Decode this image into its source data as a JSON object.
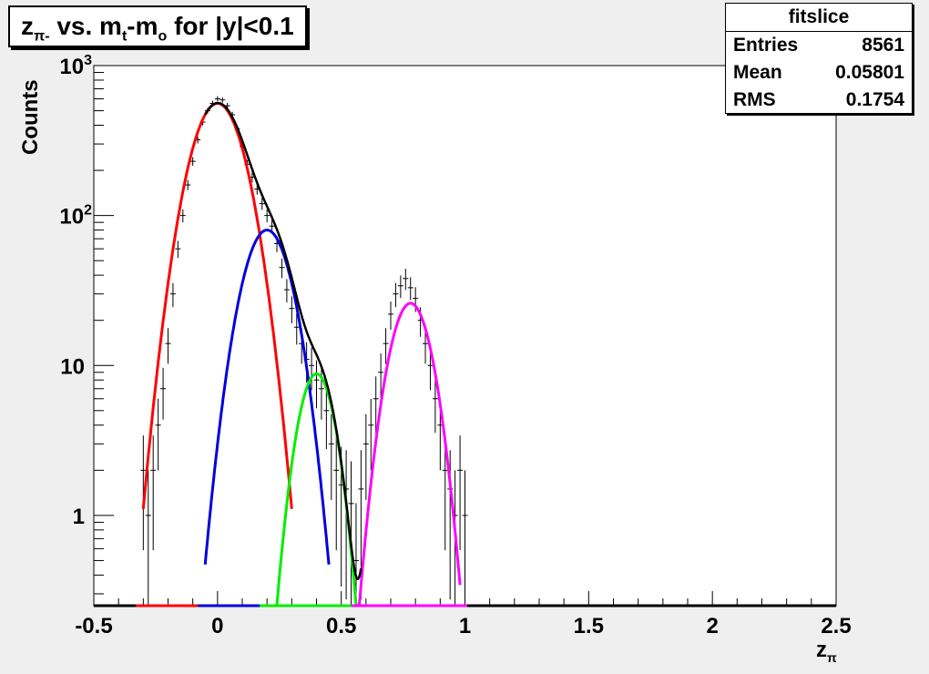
{
  "title": {
    "main": "z",
    "sub": "π-",
    "rest": " vs. m",
    "sub2": "t",
    "rest2": "-m",
    "sub3": "o",
    "rest3": " for |y|<0.1"
  },
  "stats": {
    "header": "fitslice",
    "rows": [
      {
        "label": "Entries",
        "value": "8561"
      },
      {
        "label": "Mean",
        "value": "0.05801"
      },
      {
        "label": "RMS",
        "value": "0.1754"
      }
    ]
  },
  "axes": {
    "ylabel": "Counts",
    "xlabel_main": "z",
    "xlabel_sub": "π"
  },
  "chart_data": {
    "type": "line",
    "ylog": true,
    "xlim": [
      -0.5,
      2.5
    ],
    "ylim": [
      0.25,
      1000
    ],
    "xticks": [
      {
        "v": -0.5,
        "label": "-0.5"
      },
      {
        "v": 0,
        "label": "0"
      },
      {
        "v": 0.5,
        "label": "0.5"
      },
      {
        "v": 1,
        "label": "1"
      },
      {
        "v": 1.5,
        "label": "1.5"
      },
      {
        "v": 2,
        "label": "2"
      },
      {
        "v": 2.5,
        "label": "2.5"
      }
    ],
    "yticks": [
      {
        "v": 1,
        "label": "1"
      },
      {
        "v": 10,
        "label": "10"
      },
      {
        "v": 100,
        "label": "10",
        "exp": "2"
      },
      {
        "v": 1000,
        "label": "10",
        "exp": "3"
      }
    ],
    "series": [
      {
        "color": "#ff0000",
        "amp": 560,
        "mu": 0.0,
        "sigma": 0.085,
        "xmin": -0.3,
        "xmax": 0.3
      },
      {
        "color": "#0000dd",
        "amp": 80,
        "mu": 0.2,
        "sigma": 0.078,
        "xmin": -0.05,
        "xmax": 0.45
      },
      {
        "color": "#00ee00",
        "amp": 8.8,
        "mu": 0.4,
        "sigma": 0.06,
        "xmin": 0.2,
        "xmax": 0.57
      },
      {
        "color": "#ff00ff",
        "amp": 26,
        "mu": 0.78,
        "sigma": 0.068,
        "xmin": 0.57,
        "xmax": 0.98
      }
    ],
    "data_points": [
      [
        -0.3,
        2
      ],
      [
        -0.28,
        1
      ],
      [
        -0.26,
        2
      ],
      [
        -0.24,
        4
      ],
      [
        -0.22,
        7
      ],
      [
        -0.2,
        14
      ],
      [
        -0.18,
        30
      ],
      [
        -0.16,
        60
      ],
      [
        -0.14,
        100
      ],
      [
        -0.12,
        160
      ],
      [
        -0.1,
        230
      ],
      [
        -0.08,
        320
      ],
      [
        -0.06,
        420
      ],
      [
        -0.04,
        500
      ],
      [
        -0.02,
        560
      ],
      [
        0,
        600
      ],
      [
        0.02,
        590
      ],
      [
        0.04,
        540
      ],
      [
        0.06,
        470
      ],
      [
        0.08,
        380
      ],
      [
        0.1,
        290
      ],
      [
        0.12,
        220
      ],
      [
        0.14,
        180
      ],
      [
        0.16,
        150
      ],
      [
        0.18,
        120
      ],
      [
        0.2,
        100
      ],
      [
        0.22,
        85
      ],
      [
        0.24,
        65
      ],
      [
        0.26,
        45
      ],
      [
        0.28,
        32
      ],
      [
        0.3,
        24
      ],
      [
        0.32,
        18
      ],
      [
        0.34,
        14
      ],
      [
        0.36,
        11
      ],
      [
        0.38,
        10
      ],
      [
        0.4,
        8
      ],
      [
        0.42,
        7
      ],
      [
        0.44,
        5
      ],
      [
        0.46,
        3
      ],
      [
        0.48,
        2
      ],
      [
        0.5,
        1.6
      ],
      [
        0.52,
        1.5
      ],
      [
        0.54,
        1.2
      ],
      [
        0.56,
        0.5
      ],
      [
        0.58,
        1.5
      ],
      [
        0.6,
        3
      ],
      [
        0.62,
        4
      ],
      [
        0.64,
        6
      ],
      [
        0.66,
        9
      ],
      [
        0.68,
        14
      ],
      [
        0.7,
        22
      ],
      [
        0.72,
        30
      ],
      [
        0.74,
        34
      ],
      [
        0.76,
        38
      ],
      [
        0.78,
        33
      ],
      [
        0.8,
        28
      ],
      [
        0.82,
        20
      ],
      [
        0.84,
        14
      ],
      [
        0.86,
        10
      ],
      [
        0.88,
        6
      ],
      [
        0.9,
        4
      ],
      [
        0.92,
        2
      ],
      [
        0.94,
        1.5
      ],
      [
        0.96,
        1
      ],
      [
        0.98,
        2
      ],
      [
        1.0,
        1
      ]
    ]
  }
}
